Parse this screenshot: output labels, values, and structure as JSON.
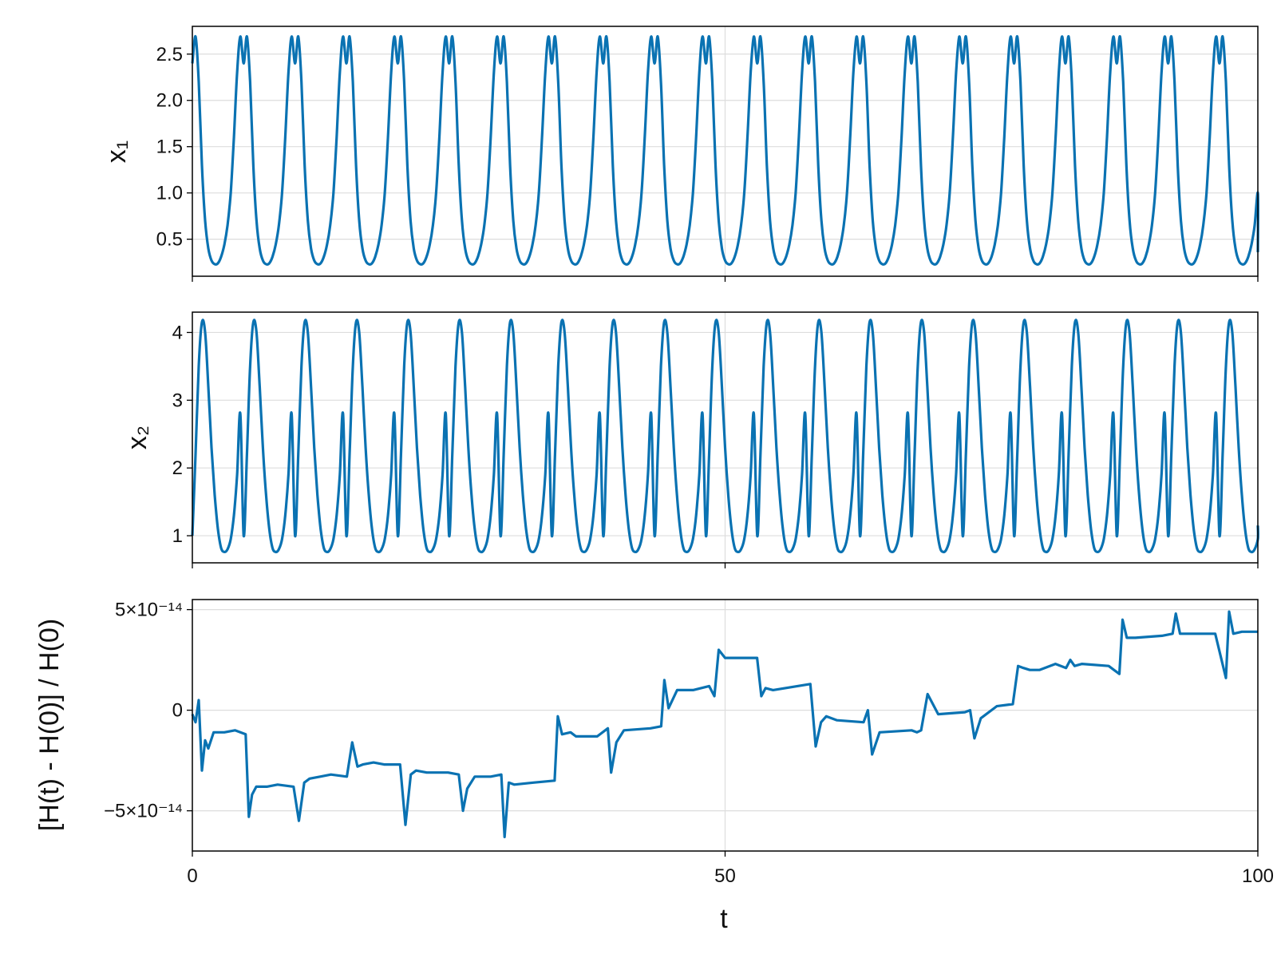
{
  "line_color": "#0a72b2",
  "frame_color": "#000000",
  "grid_color": "#dddddd",
  "chart_data": [
    {
      "type": "line",
      "id": "x1-panel",
      "xlabel": "",
      "ylabel": "x₁",
      "xlim": [
        0,
        100
      ],
      "ylim": [
        0.1,
        2.8
      ],
      "yticks": [
        {
          "value": 0.5,
          "label": "0.5"
        },
        {
          "value": 1.0,
          "label": "1.0"
        },
        {
          "value": 1.5,
          "label": "1.5"
        },
        {
          "value": 2.0,
          "label": "2.0"
        },
        {
          "value": 2.5,
          "label": "2.5"
        }
      ],
      "xticks": [
        {
          "value": 0,
          "label": ""
        },
        {
          "value": 50,
          "label": ""
        },
        {
          "value": 100,
          "label": ""
        }
      ],
      "grid": true,
      "series": [
        {
          "x": [
            0.0,
            0.3,
            0.6,
            0.9,
            1.2,
            1.5,
            1.8,
            2.1,
            2.4,
            2.7,
            3.0,
            3.3,
            3.6,
            3.9,
            4.2,
            4.5,
            4.8
          ],
          "y": [
            2.4,
            2.69,
            2.2,
            1.3,
            0.7,
            0.4,
            0.27,
            0.23,
            0.24,
            0.31,
            0.44,
            0.65,
            1.0,
            1.6,
            2.3,
            2.69,
            2.4
          ],
          "period": 4.82,
          "note_tail_value": 0.36
        }
      ]
    },
    {
      "type": "line",
      "id": "x2-panel",
      "xlabel": "",
      "ylabel": "x₂",
      "xlim": [
        0,
        100
      ],
      "ylim": [
        0.6,
        4.3
      ],
      "yticks": [
        {
          "value": 1,
          "label": "1"
        },
        {
          "value": 2,
          "label": "2"
        },
        {
          "value": 3,
          "label": "3"
        },
        {
          "value": 4,
          "label": "4"
        }
      ],
      "xticks": [
        {
          "value": 0,
          "label": ""
        },
        {
          "value": 50,
          "label": ""
        },
        {
          "value": 100,
          "label": ""
        }
      ],
      "grid": true,
      "series": [
        {
          "x": [
            0.0,
            0.3,
            0.6,
            0.9,
            1.2,
            1.5,
            1.8,
            2.1,
            2.4,
            2.7,
            3.0,
            3.3,
            3.6,
            3.9,
            4.2,
            4.5,
            4.8
          ],
          "y": [
            1.0,
            2.2,
            3.5,
            4.15,
            4.0,
            3.2,
            2.3,
            1.6,
            1.1,
            0.82,
            0.76,
            0.8,
            0.95,
            1.3,
            1.9,
            2.8,
            3.7
          ],
          "period": 4.82,
          "end_value": 1.15
        }
      ]
    },
    {
      "type": "line",
      "id": "energy-panel",
      "xlabel": "t",
      "ylabel": "[H(t) - H(0)] / H(0)",
      "xlim": [
        0,
        100
      ],
      "ylim": [
        -7e-14,
        5.5e-14
      ],
      "yticks": [
        {
          "value": -5e-14,
          "label": "−5×10⁻¹⁴"
        },
        {
          "value": 0,
          "label": "0"
        },
        {
          "value": 5e-14,
          "label": "5×10⁻¹⁴"
        }
      ],
      "xticks": [
        {
          "value": 0,
          "label": "0"
        },
        {
          "value": 50,
          "label": "50"
        },
        {
          "value": 100,
          "label": "100"
        }
      ],
      "grid": true,
      "series": [
        {
          "x": [
            0,
            0.3,
            0.6,
            0.9,
            1.2,
            1.5,
            2.0,
            3.0,
            4.0,
            5.0,
            5.3,
            5.6,
            6.0,
            7.0,
            8.0,
            9.5,
            10.0,
            10.5,
            11.0,
            12.0,
            13.0,
            14.5,
            15.0,
            15.5,
            16.0,
            17.0,
            18.0,
            19.5,
            20.0,
            20.5,
            21.0,
            22.0,
            24.0,
            25.0,
            25.4,
            25.8,
            26.5,
            28.0,
            29.0,
            29.3,
            29.7,
            30.2,
            32.0,
            34.0,
            34.3,
            34.7,
            35.5,
            36.0,
            38.0,
            39.0,
            39.3,
            39.8,
            40.5,
            43.0,
            44.0,
            44.3,
            44.7,
            45.5,
            47.0,
            48.5,
            49.0,
            49.4,
            50.0,
            53.0,
            53.4,
            53.8,
            54.5,
            58.0,
            58.5,
            59.0,
            59.5,
            60.5,
            63.0,
            63.4,
            63.8,
            64.5,
            67.5,
            68.0,
            68.4,
            69.0,
            70.0,
            72.5,
            73.0,
            73.4,
            74.0,
            75.5,
            77.0,
            77.5,
            78.0,
            78.6,
            79.5,
            81.0,
            82.0,
            82.4,
            82.8,
            83.5,
            86.0,
            87.0,
            87.3,
            87.7,
            88.5,
            91.0,
            92.0,
            92.3,
            92.7,
            93.5,
            96.0,
            97.0,
            97.3,
            97.7,
            98.5,
            100.0
          ],
          "y": [
            -2e-15,
            -6e-15,
            5e-15,
            -3e-14,
            -1.5e-14,
            -1.9e-14,
            -1.1e-14,
            -1.1e-14,
            -1e-14,
            -1.2e-14,
            -5.3e-14,
            -4.2e-14,
            -3.8e-14,
            -3.8e-14,
            -3.7e-14,
            -3.8e-14,
            -5.5e-14,
            -3.6e-14,
            -3.4e-14,
            -3.3e-14,
            -3.2e-14,
            -3.3e-14,
            -1.6e-14,
            -2.8e-14,
            -2.7e-14,
            -2.6e-14,
            -2.7e-14,
            -2.7e-14,
            -5.7e-14,
            -3.2e-14,
            -3e-14,
            -3.1e-14,
            -3.1e-14,
            -3.2e-14,
            -5e-14,
            -3.9e-14,
            -3.3e-14,
            -3.3e-14,
            -3.2e-14,
            -6.3e-14,
            -3.6e-14,
            -3.7e-14,
            -3.6e-14,
            -3.5e-14,
            -3e-15,
            -1.2e-14,
            -1.1e-14,
            -1.3e-14,
            -1.3e-14,
            -9e-15,
            -3.1e-14,
            -1.6e-14,
            -1e-14,
            -9e-15,
            -8e-15,
            1.5e-14,
            1e-15,
            1e-14,
            1e-14,
            1.2e-14,
            7e-15,
            3e-14,
            2.6e-14,
            2.6e-14,
            7e-15,
            1.1e-14,
            1e-14,
            1.3e-14,
            -1.8e-14,
            -6e-15,
            -3e-15,
            -5e-15,
            -6e-15,
            0.0,
            -2.2e-14,
            -1.1e-14,
            -1e-14,
            -1.1e-14,
            -1e-14,
            8e-15,
            -2e-15,
            -1e-15,
            0.0,
            -1.4e-14,
            -4e-15,
            2e-15,
            3e-15,
            2.2e-14,
            2.1e-14,
            2e-14,
            2e-14,
            2.3e-14,
            2.1e-14,
            2.5e-14,
            2.2e-14,
            2.3e-14,
            2.2e-14,
            1.8e-14,
            4.5e-14,
            3.6e-14,
            3.6e-14,
            3.7e-14,
            3.8e-14,
            4.8e-14,
            3.8e-14,
            3.8e-14,
            3.8e-14,
            1.6e-14,
            4.9e-14,
            3.8e-14,
            3.9e-14,
            3.9e-14
          ]
        }
      ]
    }
  ]
}
